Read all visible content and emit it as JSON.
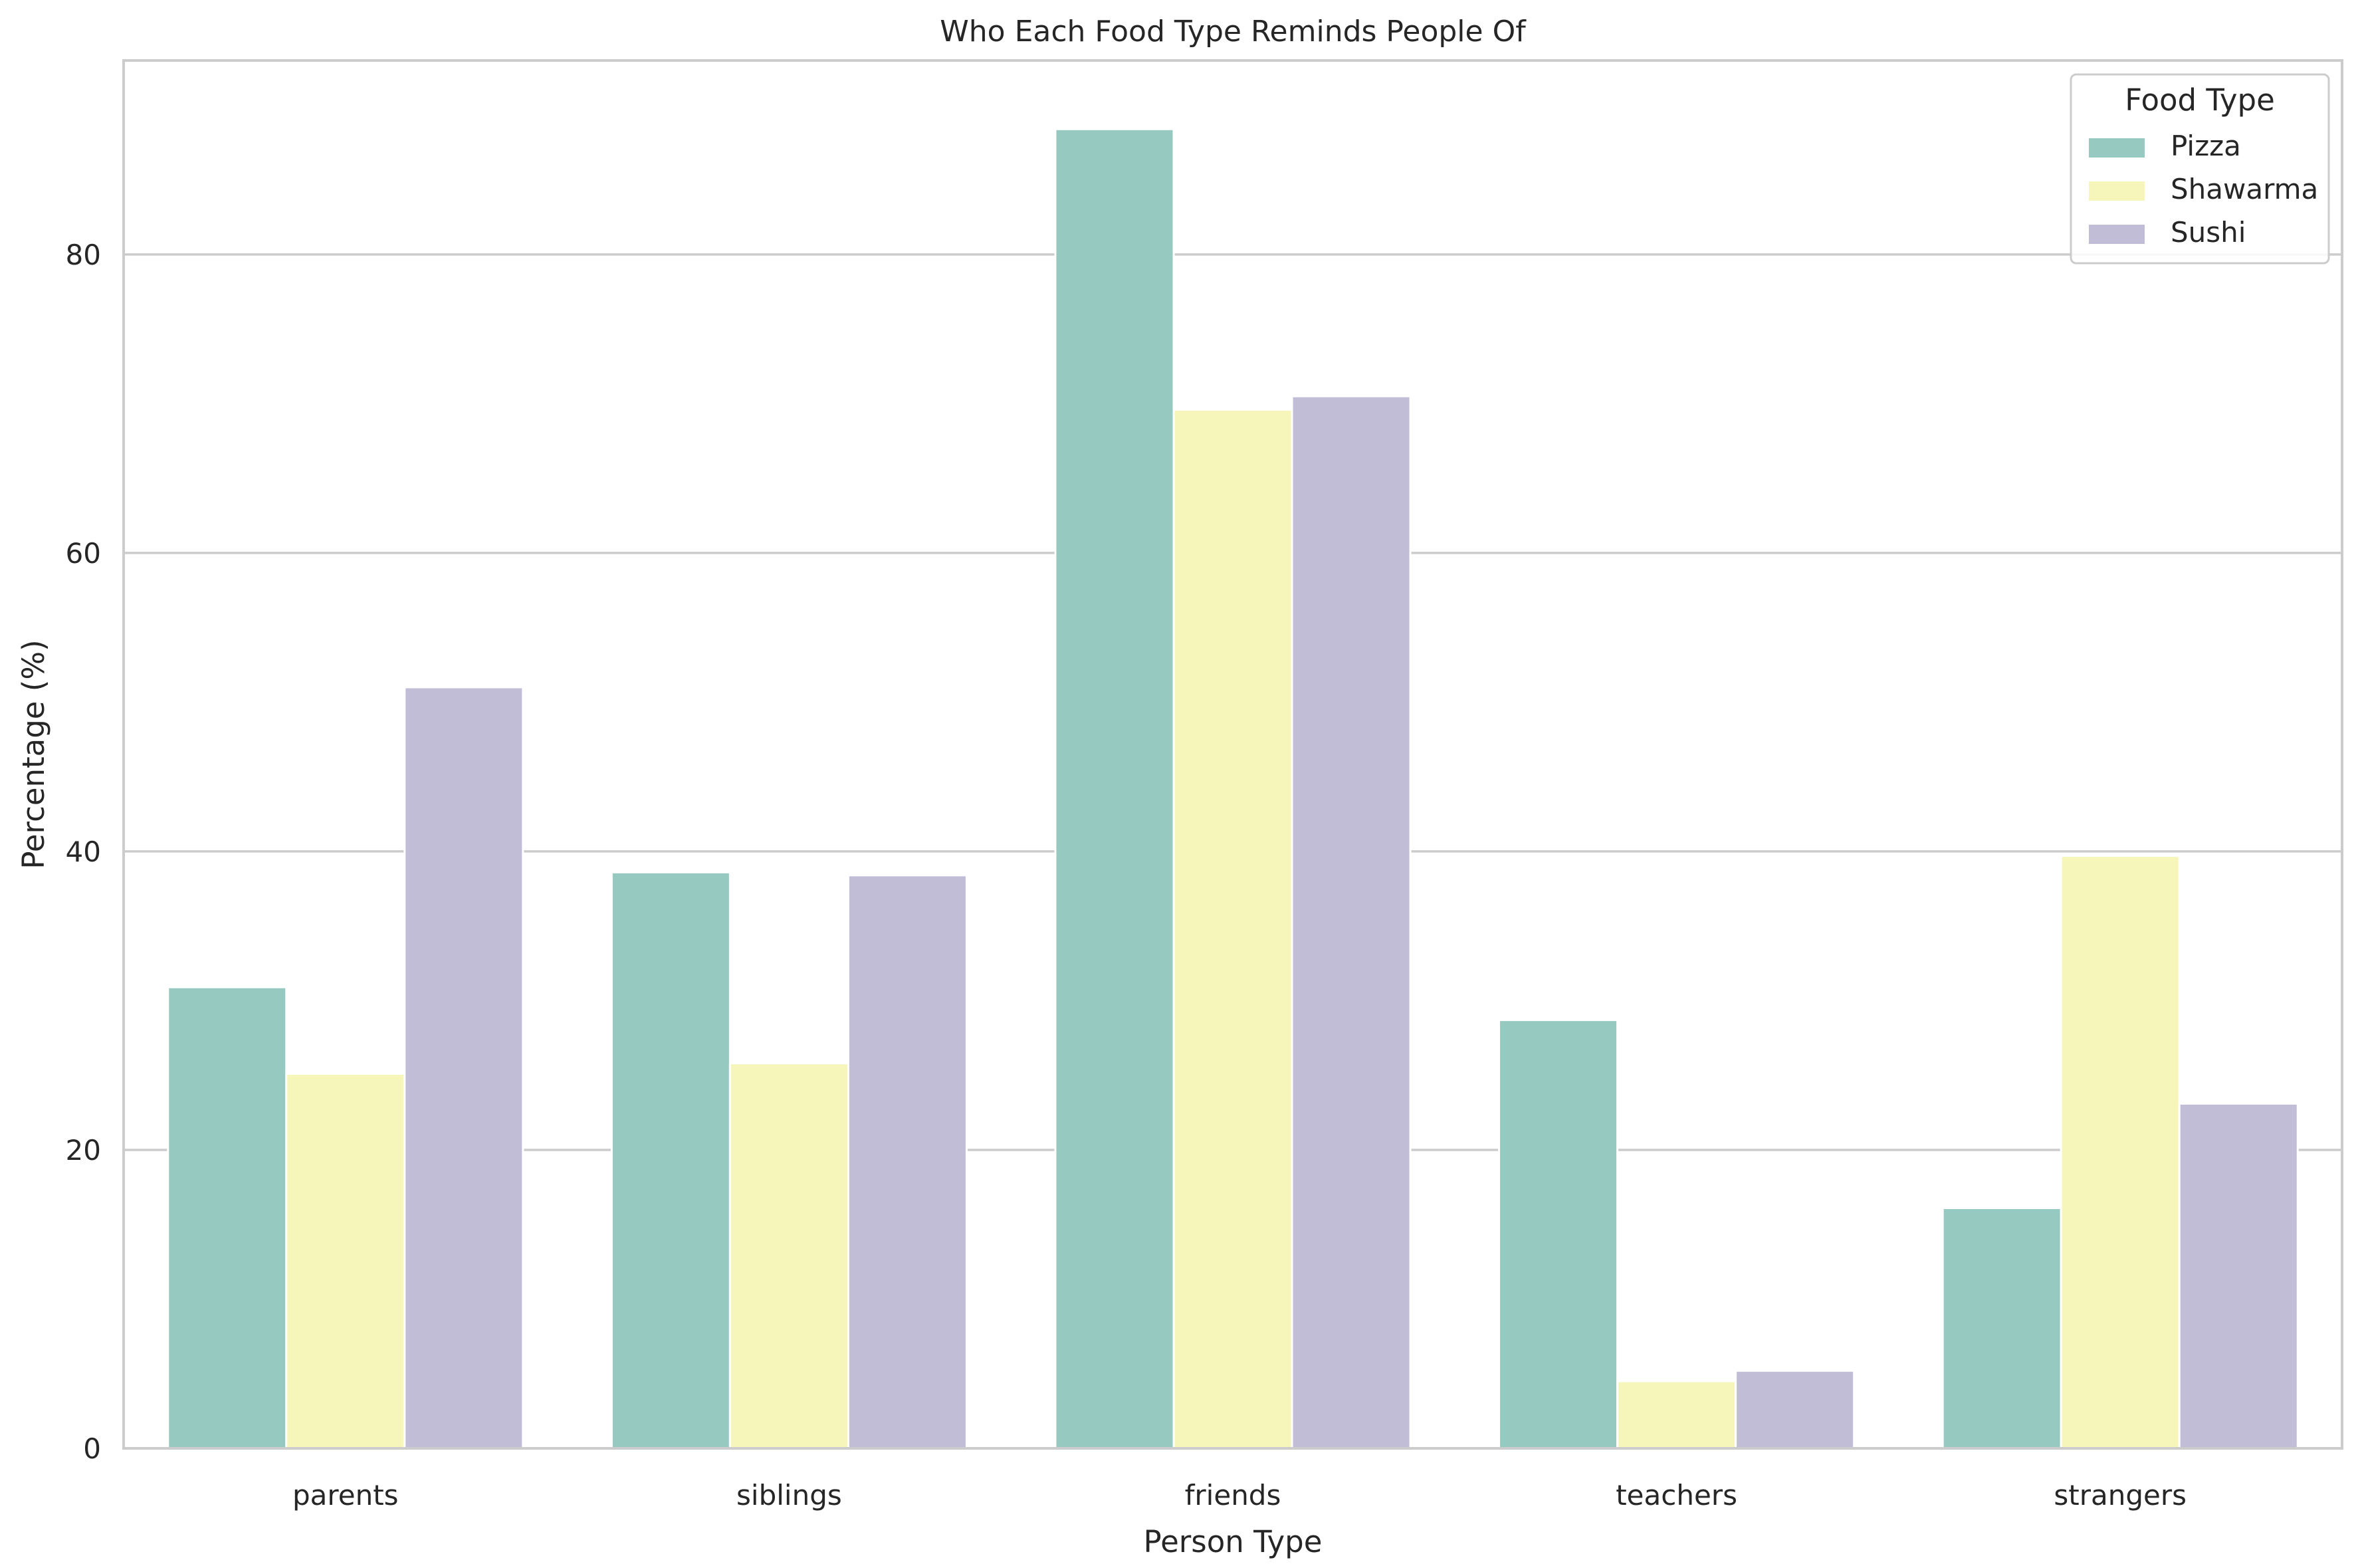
{
  "chart_data": {
    "type": "bar",
    "title": "Who Each Food Type Reminds People Of",
    "xlabel": "Person Type",
    "ylabel": "Percentage (%)",
    "categories": [
      "parents",
      "siblings",
      "friends",
      "teachers",
      "strangers"
    ],
    "series": [
      {
        "name": "Pizza",
        "color": "#96c9c0",
        "values": [
          30.9,
          38.6,
          88.4,
          28.7,
          16.1
        ]
      },
      {
        "name": "Shawarma",
        "color": "#f6f6bb",
        "values": [
          25.1,
          25.8,
          69.6,
          4.5,
          39.7
        ]
      },
      {
        "name": "Sushi",
        "color": "#c1bdd7",
        "values": [
          51.0,
          38.4,
          70.5,
          5.2,
          23.1
        ]
      }
    ],
    "ylim": [
      0,
      93
    ],
    "yticks": [
      0,
      20,
      40,
      60,
      80
    ],
    "grid": "y",
    "legend": {
      "title": "Food Type",
      "position": "top-right"
    }
  }
}
